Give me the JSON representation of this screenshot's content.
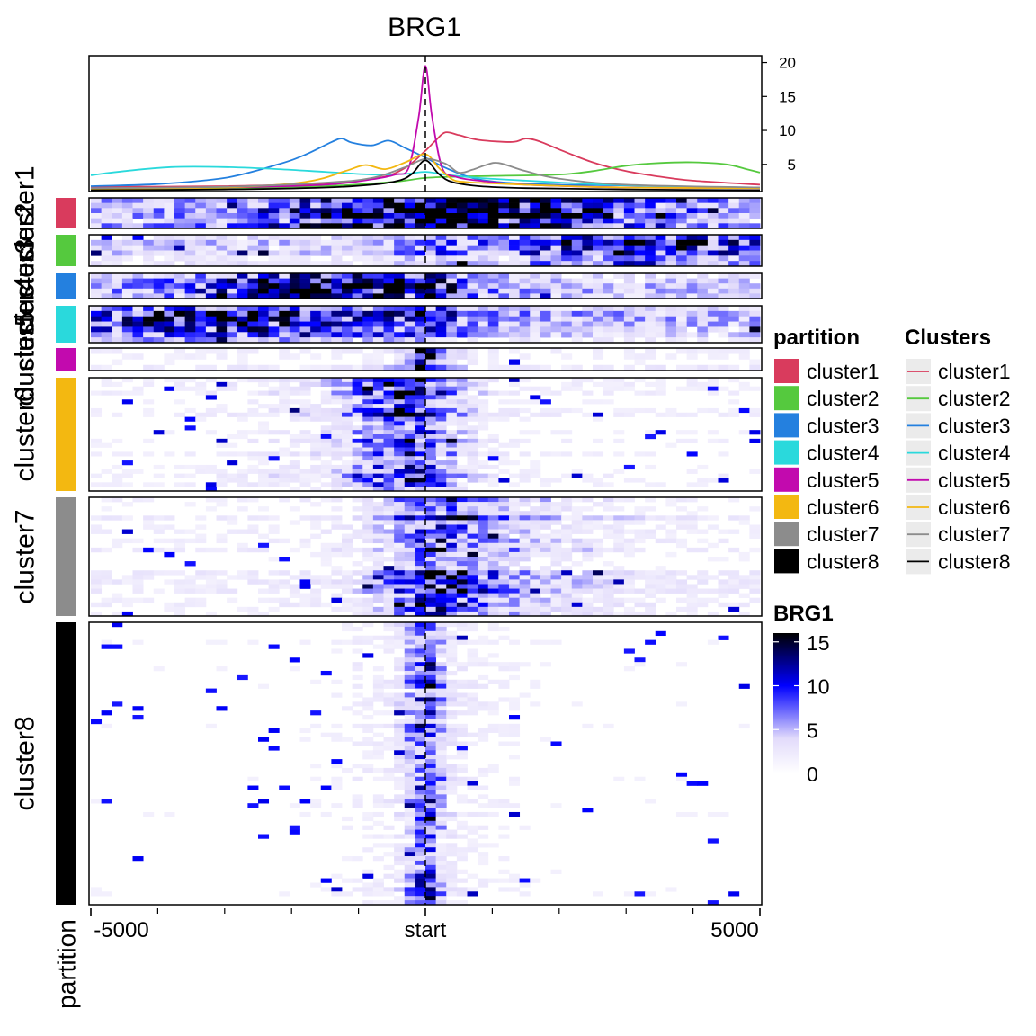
{
  "chart_data": {
    "type": "heatmap",
    "title": "BRG1",
    "profile": {
      "type": "line",
      "x_range": [
        -5000,
        5000
      ],
      "y_ticks": [
        5,
        10,
        15,
        20
      ],
      "ylim": [
        1,
        21
      ],
      "reference_line_at": "start",
      "series": [
        {
          "name": "cluster1",
          "color": "#d93b5d",
          "x": [
            -5000,
            -3000,
            -1500,
            -700,
            -300,
            0,
            150,
            300,
            500,
            800,
            1300,
            1500,
            1700,
            2000,
            2500,
            3000,
            3500,
            4000,
            5000
          ],
          "y": [
            1.7,
            1.8,
            2.2,
            3.0,
            4.5,
            7.0,
            8.5,
            9.7,
            9.3,
            8.6,
            8.3,
            8.8,
            8.4,
            7.2,
            5.3,
            4.0,
            3.2,
            2.6,
            2.0
          ]
        },
        {
          "name": "cluster2",
          "color": "#55c93e",
          "x": [
            -5000,
            -3000,
            -1500,
            -500,
            0,
            500,
            1000,
            2000,
            2500,
            3000,
            3500,
            4000,
            4500,
            4800,
            5000
          ],
          "y": [
            1.4,
            1.5,
            1.8,
            2.4,
            3.0,
            3.2,
            3.3,
            3.5,
            4.0,
            4.8,
            5.2,
            5.3,
            5.0,
            4.3,
            3.8
          ]
        },
        {
          "name": "cluster3",
          "color": "#2480df",
          "x": [
            -5000,
            -4000,
            -3000,
            -2200,
            -1800,
            -1400,
            -1250,
            -1100,
            -800,
            -550,
            -300,
            0,
            300,
            700,
            1200,
            2000,
            3000,
            4000,
            5000
          ],
          "y": [
            1.8,
            2.1,
            3.0,
            5.0,
            6.4,
            8.3,
            8.8,
            8.2,
            7.8,
            8.5,
            7.4,
            6.0,
            4.5,
            3.0,
            2.3,
            2.0,
            1.9,
            1.7,
            1.6
          ]
        },
        {
          "name": "cluster4",
          "color": "#2ad9dc",
          "x": [
            -5000,
            -4500,
            -3800,
            -3000,
            -2200,
            -1500,
            -800,
            -300,
            0,
            300,
            800,
            1500,
            2500,
            3500,
            4500,
            5000
          ],
          "y": [
            3.4,
            4.0,
            4.6,
            4.6,
            4.3,
            3.9,
            3.5,
            3.6,
            3.9,
            3.5,
            3.0,
            2.6,
            2.1,
            1.8,
            1.6,
            1.5
          ]
        },
        {
          "name": "cluster5",
          "color": "#c20aae",
          "x": [
            -5000,
            -3000,
            -1500,
            -800,
            -450,
            -250,
            -100,
            0,
            100,
            250,
            450,
            800,
            1500,
            3000,
            5000
          ],
          "y": [
            1.5,
            1.6,
            2.0,
            2.8,
            3.5,
            4.5,
            12.0,
            19.5,
            12.0,
            4.5,
            3.2,
            2.6,
            2.0,
            1.6,
            1.5
          ]
        },
        {
          "name": "cluster6",
          "color": "#f3b811",
          "x": [
            -5000,
            -3000,
            -1800,
            -1200,
            -900,
            -600,
            -300,
            0,
            200,
            400,
            600,
            1000,
            1800,
            3000,
            5000
          ],
          "y": [
            1.4,
            1.6,
            2.4,
            4.0,
            4.9,
            4.3,
            5.3,
            6.5,
            4.5,
            2.8,
            2.4,
            2.2,
            1.9,
            1.6,
            1.5
          ]
        },
        {
          "name": "cluster7",
          "color": "#8c8c8c",
          "x": [
            -5000,
            -3000,
            -1500,
            -800,
            -300,
            0,
            300,
            500,
            700,
            900,
            1100,
            1500,
            2000,
            3000,
            5000
          ],
          "y": [
            1.5,
            1.7,
            2.3,
            3.0,
            4.6,
            5.8,
            5.1,
            3.8,
            4.2,
            4.9,
            5.2,
            4.0,
            2.9,
            2.0,
            1.6
          ]
        },
        {
          "name": "cluster8",
          "color": "#000000",
          "x": [
            -5000,
            -3000,
            -1500,
            -800,
            -400,
            -200,
            0,
            200,
            400,
            800,
            1500,
            3000,
            5000
          ],
          "y": [
            1.2,
            1.3,
            1.6,
            2.0,
            2.6,
            3.6,
            5.6,
            3.6,
            2.4,
            1.8,
            1.5,
            1.3,
            1.2
          ]
        }
      ]
    },
    "heatmap": {
      "x_ticks": [
        "-5000",
        "start",
        "5000"
      ],
      "partition_label": "partition",
      "color_scale": {
        "name": "BRG1",
        "ticks": [
          0,
          5,
          10,
          15
        ],
        "colors": [
          "#ffffff",
          "#e2dbfb",
          "#0000ff",
          "#000000"
        ],
        "range": [
          0,
          16
        ]
      },
      "partitions": [
        {
          "name": "cluster1",
          "color": "#d93b5d",
          "rows": 6,
          "pattern": "right-enriched"
        },
        {
          "name": "cluster2",
          "color": "#55c93e",
          "rows": 6,
          "pattern": "far-right"
        },
        {
          "name": "cluster3",
          "color": "#2480df",
          "rows": 5,
          "pattern": "left-enriched"
        },
        {
          "name": "cluster4",
          "color": "#2ad9dc",
          "rows": 7,
          "pattern": "far-left"
        },
        {
          "name": "cluster5",
          "color": "#c20aae",
          "rows": 4,
          "pattern": "sharp-center"
        },
        {
          "name": "cluster6",
          "color": "#f3b811",
          "rows": 26,
          "pattern": "center-left"
        },
        {
          "name": "cluster7",
          "color": "#8c8c8c",
          "rows": 26,
          "pattern": "center-right"
        },
        {
          "name": "cluster8",
          "color": "#000000",
          "rows": 64,
          "pattern": "narrow-center"
        }
      ]
    },
    "legends": [
      {
        "title": "partition",
        "kind": "swatch",
        "items": [
          "cluster1",
          "cluster2",
          "cluster3",
          "cluster4",
          "cluster5",
          "cluster6",
          "cluster7",
          "cluster8"
        ]
      },
      {
        "title": "Clusters",
        "kind": "line",
        "items": [
          "cluster1",
          "cluster2",
          "cluster3",
          "cluster4",
          "cluster5",
          "cluster6",
          "cluster7",
          "cluster8"
        ]
      }
    ]
  }
}
